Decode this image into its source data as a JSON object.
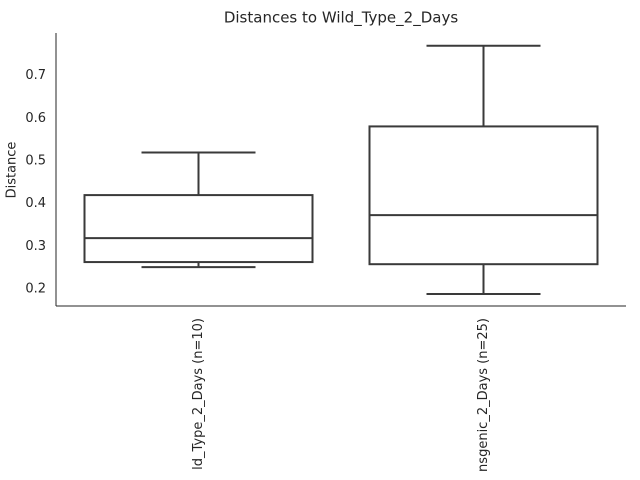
{
  "chart_data": {
    "type": "box",
    "title": "Distances to Wild_Type_2_Days",
    "ylabel": "Distance",
    "categories": [
      "ld_Type_2_Days (n=10)",
      "nsgenic_2_Days (n=25)"
    ],
    "boxes": [
      {
        "whislo": 0.251,
        "q1": 0.263,
        "median": 0.319,
        "q3": 0.42,
        "whishi": 0.52
      },
      {
        "whislo": 0.188,
        "q1": 0.258,
        "median": 0.373,
        "q3": 0.581,
        "whishi": 0.77
      }
    ],
    "color": "#3a3a3a",
    "ylim": [
      0.16,
      0.8
    ],
    "yticks": [
      0.2,
      0.3,
      0.4,
      0.5,
      0.6,
      0.7
    ],
    "grid": false
  }
}
